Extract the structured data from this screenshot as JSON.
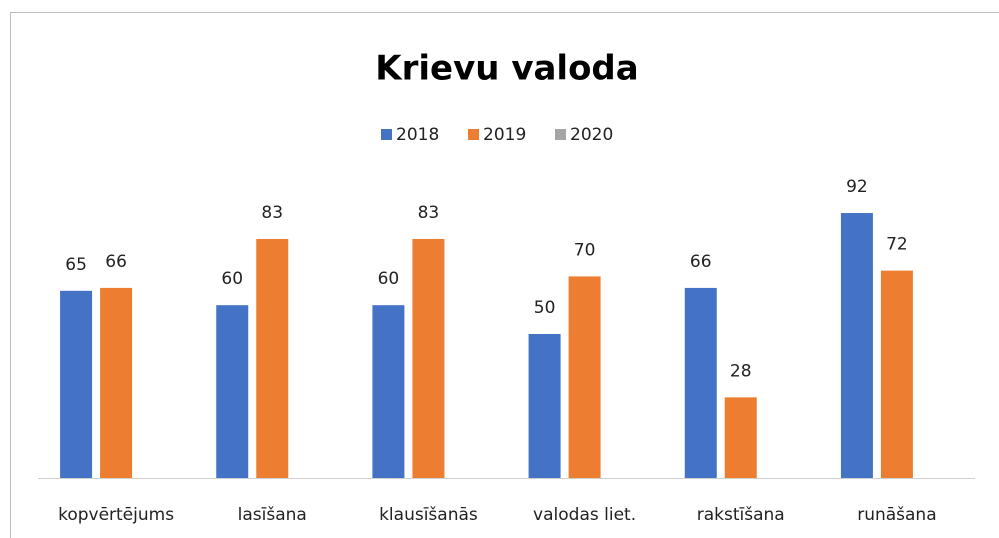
{
  "chart_data": {
    "type": "bar",
    "title": "Krievu valoda",
    "categories": [
      "kopvērtējums",
      "lasīšana",
      "klausīšanās",
      "valodas liet.",
      "rakstīšana",
      "runāšana"
    ],
    "series": [
      {
        "name": "2018",
        "color": "#4472c4",
        "values": [
          65,
          60,
          60,
          50,
          66,
          92
        ]
      },
      {
        "name": "2019",
        "color": "#ed7d31",
        "values": [
          66,
          83,
          83,
          70,
          28,
          72
        ]
      },
      {
        "name": "2020",
        "color": "#a5a5a5",
        "values": [
          null,
          null,
          null,
          null,
          null,
          null
        ]
      }
    ],
    "ylim": [
      0,
      100
    ],
    "legend": "top"
  }
}
